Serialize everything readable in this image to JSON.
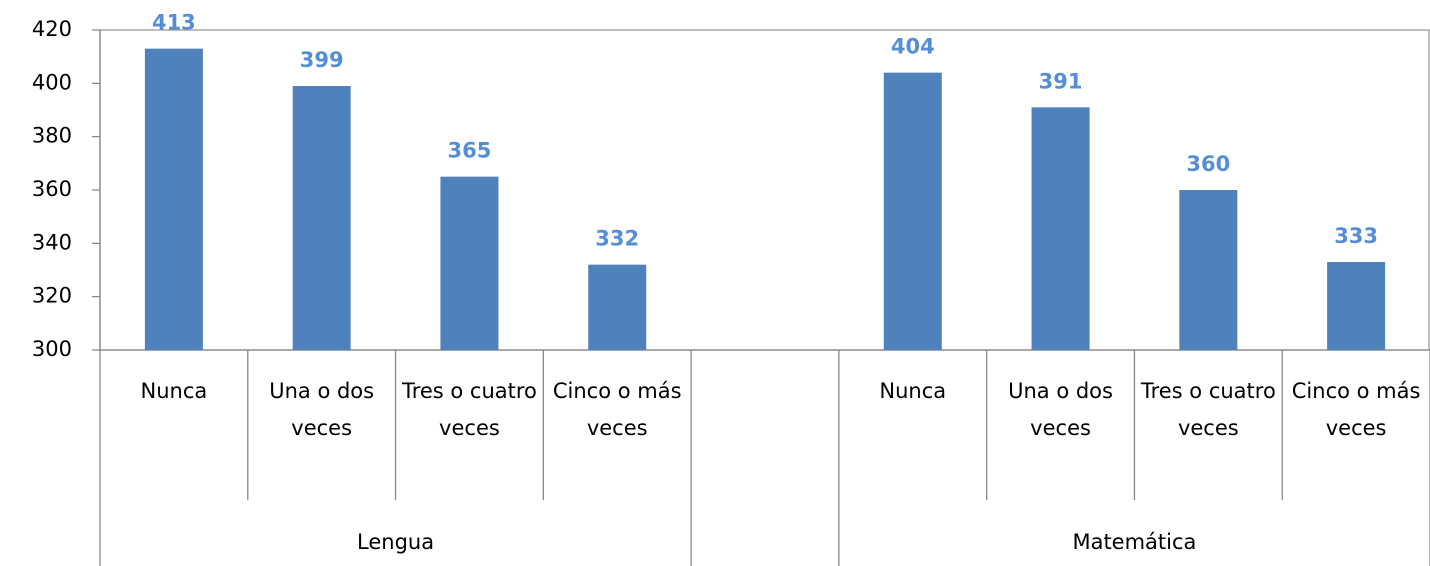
{
  "chart_data": {
    "type": "bar",
    "groups": [
      {
        "name": "Lengua",
        "categories": [
          "Nunca",
          "Una o dos veces",
          "Tres o cuatro veces",
          "Cinco o más veces"
        ],
        "values": [
          413,
          399,
          365,
          332
        ]
      },
      {
        "name": null,
        "categories": [
          null
        ],
        "values": [
          null
        ]
      },
      {
        "name": "Matemática",
        "categories": [
          "Nunca",
          "Una o dos veces",
          "Tres o cuatro veces",
          "Cinco o más veces"
        ],
        "values": [
          404,
          391,
          360,
          333
        ]
      }
    ],
    "color": "#4f81bd",
    "label_color": "#558ed5",
    "ylim": [
      300,
      420
    ],
    "yticks": [
      300,
      320,
      340,
      360,
      380,
      400,
      420
    ],
    "grid": false
  }
}
